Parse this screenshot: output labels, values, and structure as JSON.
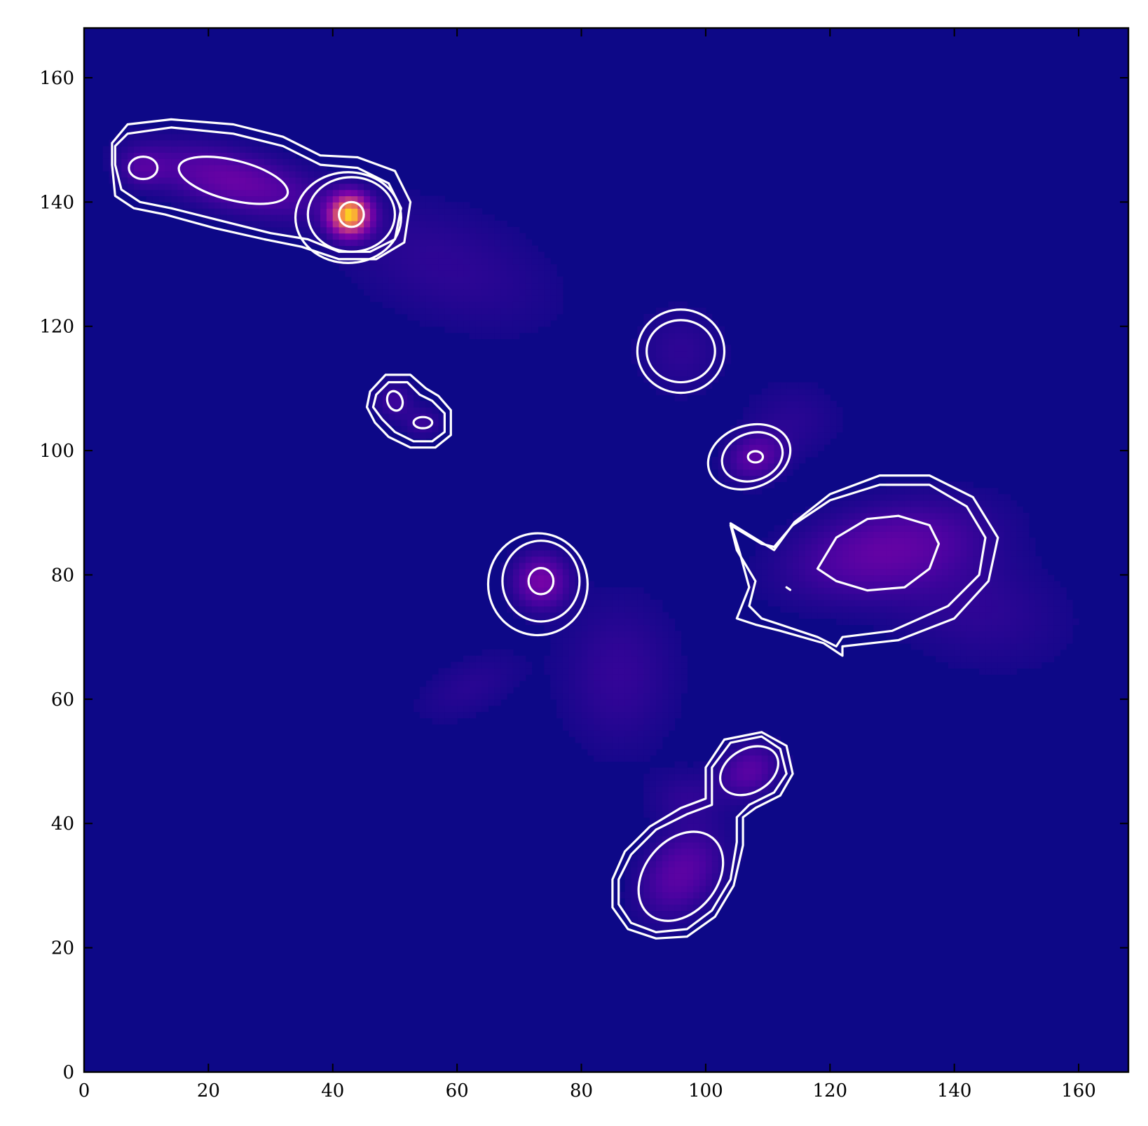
{
  "chart_data": {
    "type": "heatmap",
    "title": "",
    "xlabel": "",
    "ylabel": "",
    "xlim": [
      0,
      168
    ],
    "ylim": [
      0,
      168
    ],
    "x_ticks": [
      0,
      20,
      40,
      60,
      80,
      100,
      120,
      140,
      160
    ],
    "y_ticks": [
      0,
      20,
      40,
      60,
      80,
      100,
      120,
      140,
      160
    ],
    "x_tick_labels": [
      "0",
      "20",
      "40",
      "60",
      "80",
      "100",
      "120",
      "140",
      "160"
    ],
    "y_tick_labels": [
      "0",
      "20",
      "40",
      "60",
      "80",
      "100",
      "120",
      "140",
      "160"
    ],
    "grid": false,
    "colormap": "plasma",
    "colors": {
      "background": "#0d0887",
      "contour": "#ffffff",
      "peak": "#fcce25"
    },
    "sources": [
      {
        "name": "source-1",
        "x": 42.7,
        "y": 138.0,
        "sx": 2.0,
        "sy": 2.0,
        "angle": 0,
        "peak": 1.0
      },
      {
        "name": "source-2",
        "x": 24.0,
        "y": 143.5,
        "sx": 9.0,
        "sy": 3.0,
        "angle": -14,
        "peak": 0.18
      },
      {
        "name": "source-3",
        "x": 9.5,
        "y": 145.5,
        "sx": 2.5,
        "sy": 2.0,
        "angle": 0,
        "peak": 0.1
      },
      {
        "name": "source-4",
        "x": 50.0,
        "y": 108.0,
        "sx": 2.0,
        "sy": 2.0,
        "angle": 0,
        "peak": 0.08
      },
      {
        "name": "source-5",
        "x": 54.5,
        "y": 104.5,
        "sx": 2.0,
        "sy": 1.6,
        "angle": 0,
        "peak": 0.07
      },
      {
        "name": "source-6",
        "x": 73.5,
        "y": 79.0,
        "sx": 2.8,
        "sy": 2.8,
        "angle": 0,
        "peak": 0.22
      },
      {
        "name": "source-7",
        "x": 96.0,
        "y": 116.0,
        "sx": 4.5,
        "sy": 4.5,
        "angle": 0,
        "peak": 0.05
      },
      {
        "name": "source-8",
        "x": 108.0,
        "y": 99.0,
        "sx": 3.0,
        "sy": 2.4,
        "angle": 20,
        "peak": 0.15
      },
      {
        "name": "source-9",
        "x": 129.0,
        "y": 84.0,
        "sx": 10.0,
        "sy": 4.5,
        "angle": 12,
        "peak": 0.16
      },
      {
        "name": "source-10",
        "x": 107.0,
        "y": 48.5,
        "sx": 3.2,
        "sy": 2.6,
        "angle": 30,
        "peak": 0.14
      },
      {
        "name": "source-11",
        "x": 96.0,
        "y": 32.0,
        "sx": 5.0,
        "sy": 3.6,
        "angle": 50,
        "peak": 0.15
      },
      {
        "name": "diffuse-1",
        "x": 86.0,
        "y": 64.0,
        "sx": 6.0,
        "sy": 8.0,
        "angle": 0,
        "peak": 0.06
      },
      {
        "name": "diffuse-2",
        "x": 62.0,
        "y": 62.0,
        "sx": 6.0,
        "sy": 3.0,
        "angle": 25,
        "peak": 0.04
      },
      {
        "name": "diffuse-3",
        "x": 58.0,
        "y": 130.0,
        "sx": 12.0,
        "sy": 6.0,
        "angle": -20,
        "peak": 0.05
      },
      {
        "name": "diffuse-4",
        "x": 143.0,
        "y": 75.0,
        "sx": 10.0,
        "sy": 6.0,
        "angle": -15,
        "peak": 0.05
      },
      {
        "name": "diffuse-5",
        "x": 114.0,
        "y": 105.0,
        "sx": 5.0,
        "sy": 4.0,
        "angle": 0,
        "peak": 0.04
      },
      {
        "name": "diffuse-6",
        "x": 97.0,
        "y": 44.0,
        "sx": 4.0,
        "sy": 3.0,
        "angle": 0,
        "peak": 0.05
      }
    ],
    "contours": [
      {
        "name": "contour-ellipse",
        "shape": "ellipse",
        "cx": 43.0,
        "cy": 138.0,
        "rx": 2.0,
        "ry": 2.0,
        "angle": 0
      },
      {
        "name": "contour-ellipse",
        "shape": "ellipse",
        "cx": 43.0,
        "cy": 138.0,
        "rx": 7.0,
        "ry": 6.0,
        "angle": 0
      },
      {
        "name": "contour-ellipse",
        "shape": "ellipse",
        "cx": 42.5,
        "cy": 137.5,
        "rx": 8.5,
        "ry": 7.3,
        "angle": 0
      },
      {
        "name": "contour-ellipse",
        "shape": "ellipse",
        "cx": 9.5,
        "cy": 145.5,
        "rx": 2.3,
        "ry": 1.8,
        "angle": 0
      },
      {
        "name": "contour-ellipse",
        "shape": "ellipse",
        "cx": 24.0,
        "cy": 143.5,
        "rx": 9.0,
        "ry": 3.2,
        "angle": -14
      },
      {
        "name": "contour-polygon",
        "shape": "polygon",
        "points": [
          [
            5,
            149
          ],
          [
            7,
            151
          ],
          [
            14,
            152
          ],
          [
            24,
            151
          ],
          [
            32,
            149
          ],
          [
            38,
            146
          ],
          [
            44,
            145.5
          ],
          [
            49,
            143
          ],
          [
            51,
            139
          ],
          [
            50,
            134
          ],
          [
            46,
            132
          ],
          [
            41,
            132
          ],
          [
            36,
            134
          ],
          [
            30,
            135
          ],
          [
            22,
            137
          ],
          [
            14,
            139
          ],
          [
            9,
            140
          ],
          [
            6,
            142
          ],
          [
            5,
            146
          ]
        ]
      },
      {
        "name": "contour-polygon",
        "shape": "polygon",
        "points": [
          [
            4.5,
            149.5
          ],
          [
            7,
            152.5
          ],
          [
            14,
            153.3
          ],
          [
            24,
            152.5
          ],
          [
            32,
            150.5
          ],
          [
            38,
            147.5
          ],
          [
            44,
            147.2
          ],
          [
            50,
            145
          ],
          [
            52.5,
            140
          ],
          [
            51.5,
            133.5
          ],
          [
            47,
            130.8
          ],
          [
            41,
            130.8
          ],
          [
            35,
            132.8
          ],
          [
            29,
            134
          ],
          [
            21,
            135.8
          ],
          [
            13,
            138
          ],
          [
            8,
            139
          ],
          [
            5,
            141
          ],
          [
            4.5,
            146
          ]
        ]
      },
      {
        "name": "contour-ellipse",
        "shape": "ellipse",
        "cx": 50.0,
        "cy": 108.0,
        "rx": 1.2,
        "ry": 1.6,
        "angle": 20
      },
      {
        "name": "contour-ellipse",
        "shape": "ellipse",
        "cx": 54.5,
        "cy": 104.5,
        "rx": 1.5,
        "ry": 0.9,
        "angle": 0
      },
      {
        "name": "contour-polygon",
        "shape": "polygon",
        "points": [
          [
            47,
            109
          ],
          [
            49,
            111
          ],
          [
            52,
            111
          ],
          [
            54,
            109
          ],
          [
            56,
            108
          ],
          [
            58,
            106
          ],
          [
            58,
            103
          ],
          [
            56,
            101.5
          ],
          [
            53,
            101.5
          ],
          [
            50,
            103
          ],
          [
            48,
            105
          ],
          [
            46.5,
            107
          ]
        ]
      },
      {
        "name": "contour-polygon",
        "shape": "polygon",
        "points": [
          [
            46,
            109.5
          ],
          [
            48.5,
            112.2
          ],
          [
            52.5,
            112.2
          ],
          [
            55,
            110
          ],
          [
            57,
            108.8
          ],
          [
            59,
            106.5
          ],
          [
            59,
            102.5
          ],
          [
            56.5,
            100.5
          ],
          [
            52.5,
            100.5
          ],
          [
            49,
            102.2
          ],
          [
            46.8,
            104.5
          ],
          [
            45.5,
            107
          ]
        ]
      },
      {
        "name": "contour-ellipse",
        "shape": "ellipse",
        "cx": 73.5,
        "cy": 79.0,
        "rx": 2.0,
        "ry": 2.1,
        "angle": 0
      },
      {
        "name": "contour-ellipse",
        "shape": "ellipse",
        "cx": 73.5,
        "cy": 79.0,
        "rx": 6.2,
        "ry": 6.5,
        "angle": 0
      },
      {
        "name": "contour-ellipse",
        "shape": "ellipse",
        "cx": 73.0,
        "cy": 78.5,
        "rx": 8.0,
        "ry": 8.2,
        "angle": 0
      },
      {
        "name": "contour-ellipse",
        "shape": "ellipse",
        "cx": 96.0,
        "cy": 116.0,
        "rx": 5.5,
        "ry": 5.0,
        "angle": 0
      },
      {
        "name": "contour-ellipse",
        "shape": "ellipse",
        "cx": 96.0,
        "cy": 116.0,
        "rx": 7.0,
        "ry": 6.7,
        "angle": 0
      },
      {
        "name": "contour-ellipse",
        "shape": "ellipse",
        "cx": 108.0,
        "cy": 99.0,
        "rx": 1.2,
        "ry": 0.9,
        "angle": 0
      },
      {
        "name": "contour-ellipse",
        "shape": "ellipse",
        "cx": 107.5,
        "cy": 99.0,
        "rx": 5.0,
        "ry": 3.8,
        "angle": 20
      },
      {
        "name": "contour-ellipse",
        "shape": "ellipse",
        "cx": 107.0,
        "cy": 99.0,
        "rx": 6.8,
        "ry": 5.0,
        "angle": 20
      },
      {
        "name": "contour-polygon",
        "shape": "polygon",
        "points": [
          [
            118,
            81
          ],
          [
            121,
            86
          ],
          [
            126,
            89
          ],
          [
            131,
            89.5
          ],
          [
            136,
            88
          ],
          [
            137.5,
            85
          ],
          [
            136,
            81
          ],
          [
            132,
            78
          ],
          [
            126,
            77.5
          ],
          [
            121,
            79
          ]
        ]
      },
      {
        "name": "contour-polygon",
        "shape": "polygon",
        "points": [
          [
            104,
            88
          ],
          [
            109,
            85
          ],
          [
            111,
            84.5
          ],
          [
            114,
            88
          ],
          [
            120,
            92
          ],
          [
            128,
            94.5
          ],
          [
            136,
            94.5
          ],
          [
            142,
            91
          ],
          [
            145,
            86
          ],
          [
            144,
            80
          ],
          [
            139,
            75
          ],
          [
            130,
            71
          ],
          [
            122,
            70
          ],
          [
            121,
            68.5
          ],
          [
            118,
            70
          ],
          [
            112,
            72
          ],
          [
            109,
            73
          ],
          [
            107,
            75
          ],
          [
            108,
            79
          ],
          [
            105,
            84
          ]
        ]
      },
      {
        "name": "contour-polygon",
        "shape": "polygon",
        "points": [
          [
            104,
            88.3
          ],
          [
            111,
            84
          ],
          [
            114.3,
            88.5
          ],
          [
            120,
            93
          ],
          [
            128,
            96
          ],
          [
            136,
            96
          ],
          [
            143,
            92.5
          ],
          [
            147,
            86
          ],
          [
            145.5,
            79
          ],
          [
            140,
            73
          ],
          [
            131,
            69.5
          ],
          [
            122,
            68.5
          ],
          [
            122,
            67
          ],
          [
            119,
            69
          ],
          [
            112,
            71
          ],
          [
            108,
            72
          ],
          [
            105,
            73
          ],
          [
            107,
            78
          ],
          [
            105.5,
            83.5
          ]
        ]
      },
      {
        "name": "contour-polygon",
        "shape": "polygon",
        "points": [
          [
            113,
            78
          ],
          [
            113.6,
            77.6
          ]
        ]
      },
      {
        "name": "contour-ellipse",
        "shape": "ellipse",
        "cx": 107.0,
        "cy": 48.5,
        "rx": 5.0,
        "ry": 3.5,
        "angle": 30
      },
      {
        "name": "contour-polygon",
        "shape": "polygon",
        "points": [
          [
            101,
            49
          ],
          [
            104,
            53
          ],
          [
            109,
            54
          ],
          [
            112,
            52
          ],
          [
            113,
            48
          ],
          [
            111,
            45
          ],
          [
            107,
            43
          ],
          [
            105,
            41
          ],
          [
            105,
            37
          ],
          [
            104,
            31
          ],
          [
            101,
            26
          ],
          [
            97,
            23
          ],
          [
            92,
            22.5
          ],
          [
            88,
            24
          ],
          [
            86,
            27
          ],
          [
            86,
            31
          ],
          [
            88,
            35
          ],
          [
            92,
            39
          ],
          [
            97,
            41.5
          ],
          [
            101,
            43
          ]
        ]
      },
      {
        "name": "contour-polygon",
        "shape": "polygon",
        "points": [
          [
            100,
            49
          ],
          [
            103,
            53.5
          ],
          [
            109,
            54.7
          ],
          [
            113,
            52.5
          ],
          [
            114,
            48
          ],
          [
            112,
            44.5
          ],
          [
            108,
            42.5
          ],
          [
            106,
            41
          ],
          [
            106,
            36.5
          ],
          [
            104.5,
            30
          ],
          [
            101.5,
            25
          ],
          [
            97,
            21.8
          ],
          [
            92,
            21.5
          ],
          [
            87.5,
            23
          ],
          [
            85,
            26.5
          ],
          [
            85,
            31
          ],
          [
            87,
            35.5
          ],
          [
            91,
            39.5
          ],
          [
            96,
            42.5
          ],
          [
            100,
            44
          ]
        ]
      },
      {
        "name": "contour-ellipse",
        "shape": "ellipse",
        "cx": 96.0,
        "cy": 31.5,
        "rx": 8.0,
        "ry": 5.8,
        "angle": 50
      }
    ]
  }
}
